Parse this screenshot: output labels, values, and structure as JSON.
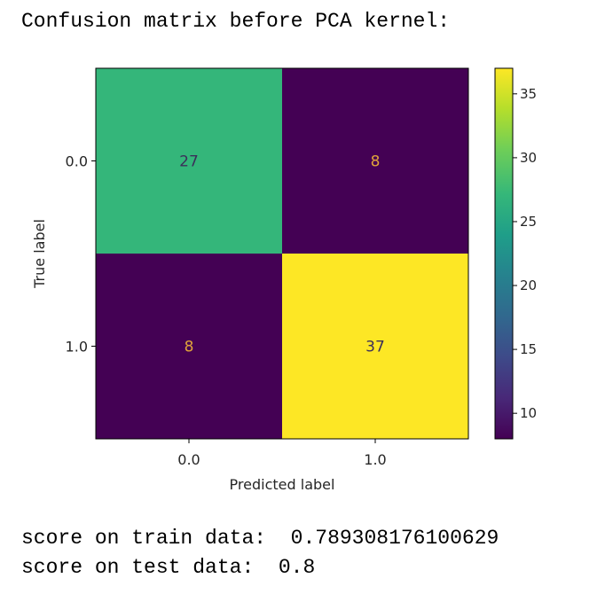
{
  "heading": "Confusion matrix before PCA kernel:",
  "chart_data": {
    "type": "heatmap",
    "title": "",
    "xlabel": "Predicted label",
    "ylabel": "True label",
    "x_categories": [
      "0.0",
      "1.0"
    ],
    "y_categories": [
      "0.0",
      "1.0"
    ],
    "matrix": [
      [
        27,
        8
      ],
      [
        8,
        37
      ]
    ],
    "colormap": "viridis",
    "colorbar": {
      "ticks": [
        10,
        15,
        20,
        25,
        30,
        35
      ],
      "range": [
        8,
        37
      ]
    },
    "grid": false
  },
  "scores": {
    "train_label": "score on train data:",
    "train_value": "0.789308176100629",
    "test_label": "score on test data:",
    "test_value": "0.8"
  },
  "colors": {
    "low": "#440154",
    "high": "#fde725",
    "text_on_dark": "#e0a43a",
    "text_on_light": "#3b2f5a"
  }
}
